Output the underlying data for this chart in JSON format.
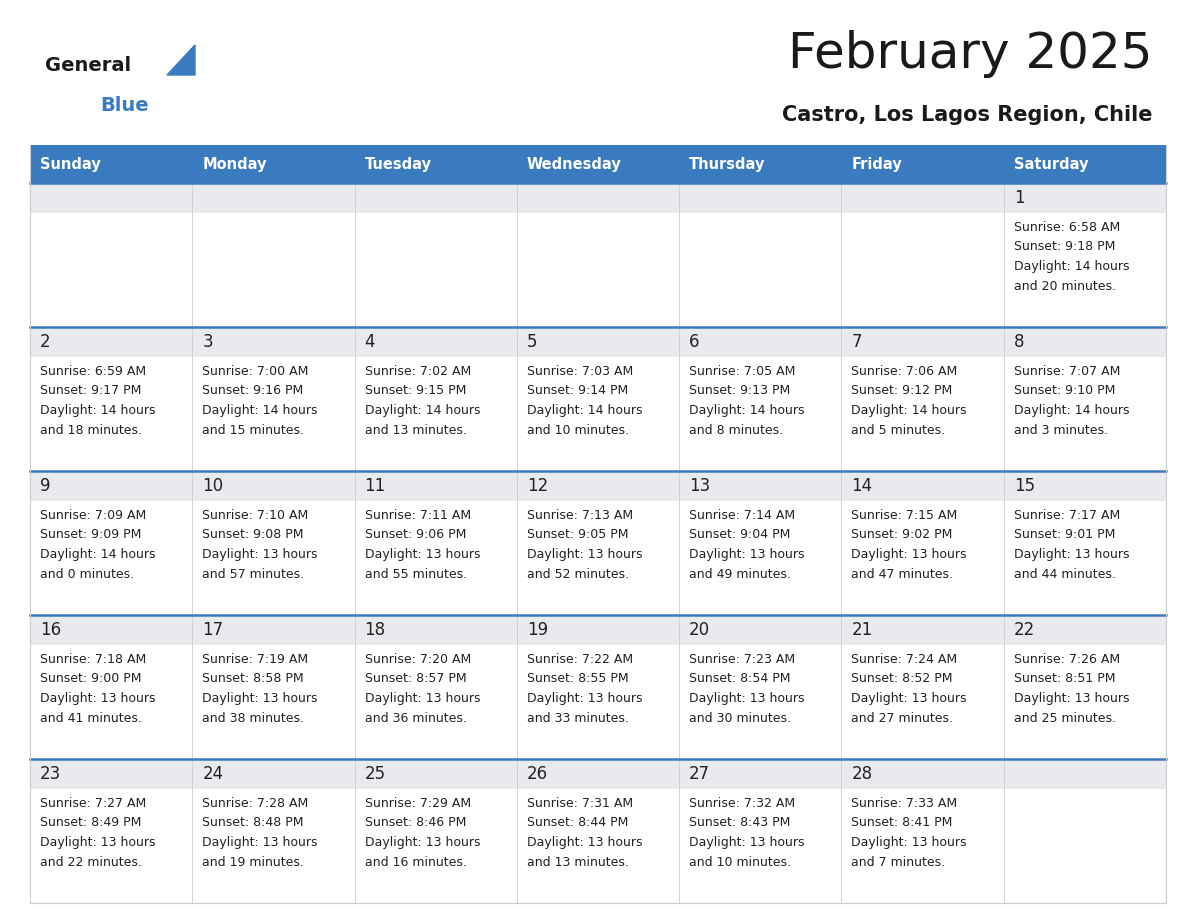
{
  "title": "February 2025",
  "subtitle": "Castro, Los Lagos Region, Chile",
  "days_of_week": [
    "Sunday",
    "Monday",
    "Tuesday",
    "Wednesday",
    "Thursday",
    "Friday",
    "Saturday"
  ],
  "header_bg": "#3a7abf",
  "header_text": "#ffffff",
  "row_top_bg": "#e8eaed",
  "cell_bg_white": "#ffffff",
  "divider_color": "#3a7abf",
  "border_color": "#cccccc",
  "text_color": "#222222",
  "day_num_color": "#222222",
  "logo_general_color": "#1a1a1a",
  "logo_blue_color": "#3a7abf",
  "logo_triangle_color": "#3a7abf",
  "calendar_data": [
    [
      null,
      null,
      null,
      null,
      null,
      null,
      {
        "day": 1,
        "sunrise": "6:58 AM",
        "sunset": "9:18 PM",
        "daylight": "14 hours and 20 minutes."
      }
    ],
    [
      {
        "day": 2,
        "sunrise": "6:59 AM",
        "sunset": "9:17 PM",
        "daylight": "14 hours and 18 minutes."
      },
      {
        "day": 3,
        "sunrise": "7:00 AM",
        "sunset": "9:16 PM",
        "daylight": "14 hours and 15 minutes."
      },
      {
        "day": 4,
        "sunrise": "7:02 AM",
        "sunset": "9:15 PM",
        "daylight": "14 hours and 13 minutes."
      },
      {
        "day": 5,
        "sunrise": "7:03 AM",
        "sunset": "9:14 PM",
        "daylight": "14 hours and 10 minutes."
      },
      {
        "day": 6,
        "sunrise": "7:05 AM",
        "sunset": "9:13 PM",
        "daylight": "14 hours and 8 minutes."
      },
      {
        "day": 7,
        "sunrise": "7:06 AM",
        "sunset": "9:12 PM",
        "daylight": "14 hours and 5 minutes."
      },
      {
        "day": 8,
        "sunrise": "7:07 AM",
        "sunset": "9:10 PM",
        "daylight": "14 hours and 3 minutes."
      }
    ],
    [
      {
        "day": 9,
        "sunrise": "7:09 AM",
        "sunset": "9:09 PM",
        "daylight": "14 hours and 0 minutes."
      },
      {
        "day": 10,
        "sunrise": "7:10 AM",
        "sunset": "9:08 PM",
        "daylight": "13 hours and 57 minutes."
      },
      {
        "day": 11,
        "sunrise": "7:11 AM",
        "sunset": "9:06 PM",
        "daylight": "13 hours and 55 minutes."
      },
      {
        "day": 12,
        "sunrise": "7:13 AM",
        "sunset": "9:05 PM",
        "daylight": "13 hours and 52 minutes."
      },
      {
        "day": 13,
        "sunrise": "7:14 AM",
        "sunset": "9:04 PM",
        "daylight": "13 hours and 49 minutes."
      },
      {
        "day": 14,
        "sunrise": "7:15 AM",
        "sunset": "9:02 PM",
        "daylight": "13 hours and 47 minutes."
      },
      {
        "day": 15,
        "sunrise": "7:17 AM",
        "sunset": "9:01 PM",
        "daylight": "13 hours and 44 minutes."
      }
    ],
    [
      {
        "day": 16,
        "sunrise": "7:18 AM",
        "sunset": "9:00 PM",
        "daylight": "13 hours and 41 minutes."
      },
      {
        "day": 17,
        "sunrise": "7:19 AM",
        "sunset": "8:58 PM",
        "daylight": "13 hours and 38 minutes."
      },
      {
        "day": 18,
        "sunrise": "7:20 AM",
        "sunset": "8:57 PM",
        "daylight": "13 hours and 36 minutes."
      },
      {
        "day": 19,
        "sunrise": "7:22 AM",
        "sunset": "8:55 PM",
        "daylight": "13 hours and 33 minutes."
      },
      {
        "day": 20,
        "sunrise": "7:23 AM",
        "sunset": "8:54 PM",
        "daylight": "13 hours and 30 minutes."
      },
      {
        "day": 21,
        "sunrise": "7:24 AM",
        "sunset": "8:52 PM",
        "daylight": "13 hours and 27 minutes."
      },
      {
        "day": 22,
        "sunrise": "7:26 AM",
        "sunset": "8:51 PM",
        "daylight": "13 hours and 25 minutes."
      }
    ],
    [
      {
        "day": 23,
        "sunrise": "7:27 AM",
        "sunset": "8:49 PM",
        "daylight": "13 hours and 22 minutes."
      },
      {
        "day": 24,
        "sunrise": "7:28 AM",
        "sunset": "8:48 PM",
        "daylight": "13 hours and 19 minutes."
      },
      {
        "day": 25,
        "sunrise": "7:29 AM",
        "sunset": "8:46 PM",
        "daylight": "13 hours and 16 minutes."
      },
      {
        "day": 26,
        "sunrise": "7:31 AM",
        "sunset": "8:44 PM",
        "daylight": "13 hours and 13 minutes."
      },
      {
        "day": 27,
        "sunrise": "7:32 AM",
        "sunset": "8:43 PM",
        "daylight": "13 hours and 10 minutes."
      },
      {
        "day": 28,
        "sunrise": "7:33 AM",
        "sunset": "8:41 PM",
        "daylight": "13 hours and 7 minutes."
      },
      null
    ]
  ]
}
